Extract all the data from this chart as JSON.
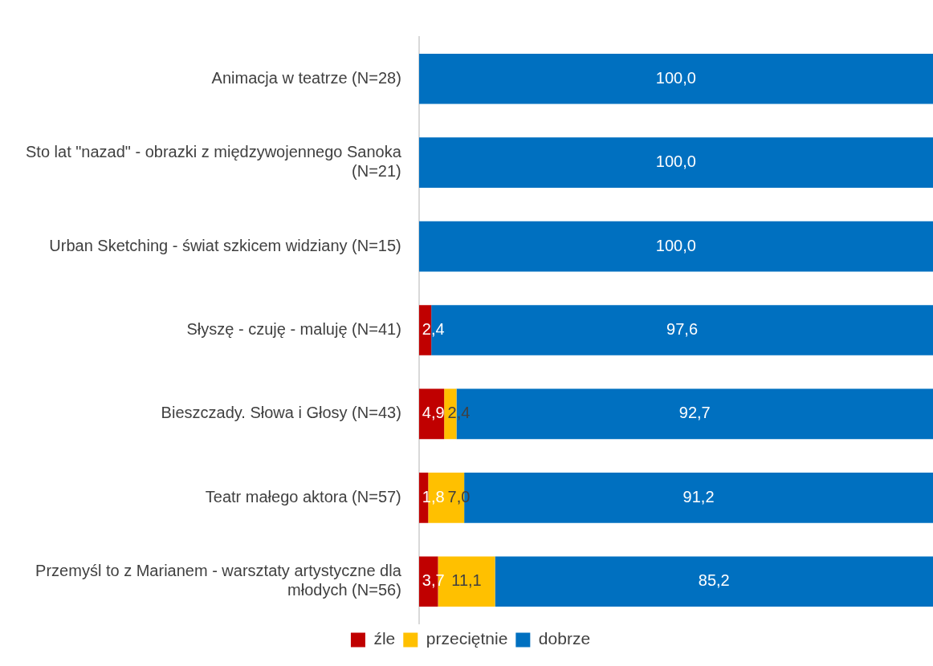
{
  "chart_data": {
    "type": "bar",
    "orientation": "horizontal",
    "stacked": true,
    "legend": "bottom",
    "grid": false,
    "tick_labels": "y",
    "xlim": [
      0,
      100
    ],
    "categories": [
      "Animacja w teatrze (N=28)",
      "Sto lat \"nazad\" - obrazki z międzywojennego Sanoka (N=21)",
      "Urban Sketching - świat szkicem widziany (N=15)",
      "Słyszę - czuję - maluję (N=41)",
      "Bieszczady. Słowa i Głosy (N=43)",
      "Teatr małego aktora (N=57)",
      "Przemyśl to z Marianem - warsztaty artystyczne dla młodych (N=56)"
    ],
    "series": [
      {
        "name": "źle",
        "color": "#c00000",
        "values": [
          null,
          null,
          null,
          2.4,
          4.9,
          1.8,
          3.7
        ],
        "value_labels": [
          null,
          null,
          null,
          "2,4",
          "4,9",
          "1,8",
          "3,7"
        ]
      },
      {
        "name": "przeciętnie",
        "color": "#ffc000",
        "values": [
          null,
          null,
          null,
          null,
          2.4,
          7.0,
          11.1
        ],
        "value_labels": [
          null,
          null,
          null,
          null,
          "2,4",
          "7,0",
          "11,1"
        ]
      },
      {
        "name": "dobrze",
        "color": "#0070c0",
        "values": [
          100.0,
          100.0,
          100.0,
          97.6,
          92.7,
          91.2,
          85.2
        ],
        "value_labels": [
          "100,0",
          "100,0",
          "100,0",
          "97,6",
          "92,7",
          "91,2",
          "85,2"
        ]
      }
    ]
  }
}
